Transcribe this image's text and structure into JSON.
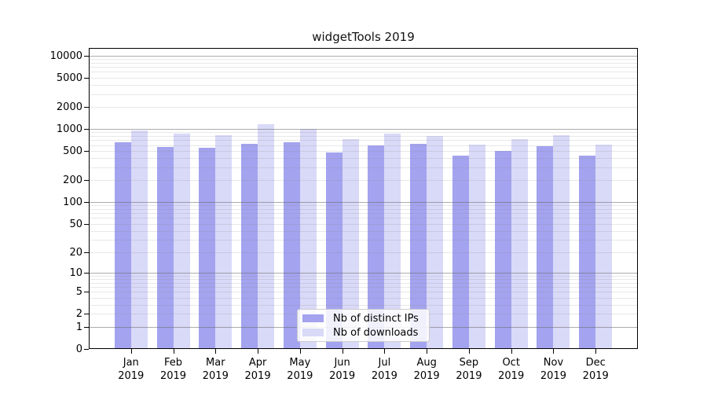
{
  "title": "widgetTools 2019",
  "legend": {
    "items": [
      {
        "label": "Nb of distinct IPs",
        "color": "#a3a3ef"
      },
      {
        "label": "Nb of downloads",
        "color": "#d9d9f8"
      }
    ]
  },
  "chart_data": {
    "type": "bar",
    "title": "widgetTools 2019",
    "scale": "log1p",
    "grid": true,
    "legend_position": "lower-center",
    "categories": [
      "Jan",
      "Feb",
      "Mar",
      "Apr",
      "May",
      "Jun",
      "Jul",
      "Aug",
      "Sep",
      "Oct",
      "Nov",
      "Dec"
    ],
    "year": "2019",
    "series": [
      {
        "name": "Nb of distinct IPs",
        "color": "#a3a3ef",
        "values": [
          660,
          570,
          555,
          630,
          650,
          480,
          590,
          620,
          435,
          505,
          575,
          435
        ]
      },
      {
        "name": "Nb of downloads",
        "color": "#d9d9f8",
        "values": [
          950,
          865,
          830,
          1150,
          1000,
          735,
          865,
          810,
          615,
          735,
          830,
          610
        ]
      }
    ],
    "y_ticks": [
      0,
      1,
      2,
      5,
      10,
      20,
      50,
      100,
      200,
      500,
      1000,
      2000,
      5000,
      10000
    ],
    "ylim": [
      0,
      13000
    ],
    "xlabel": "",
    "ylabel": ""
  }
}
